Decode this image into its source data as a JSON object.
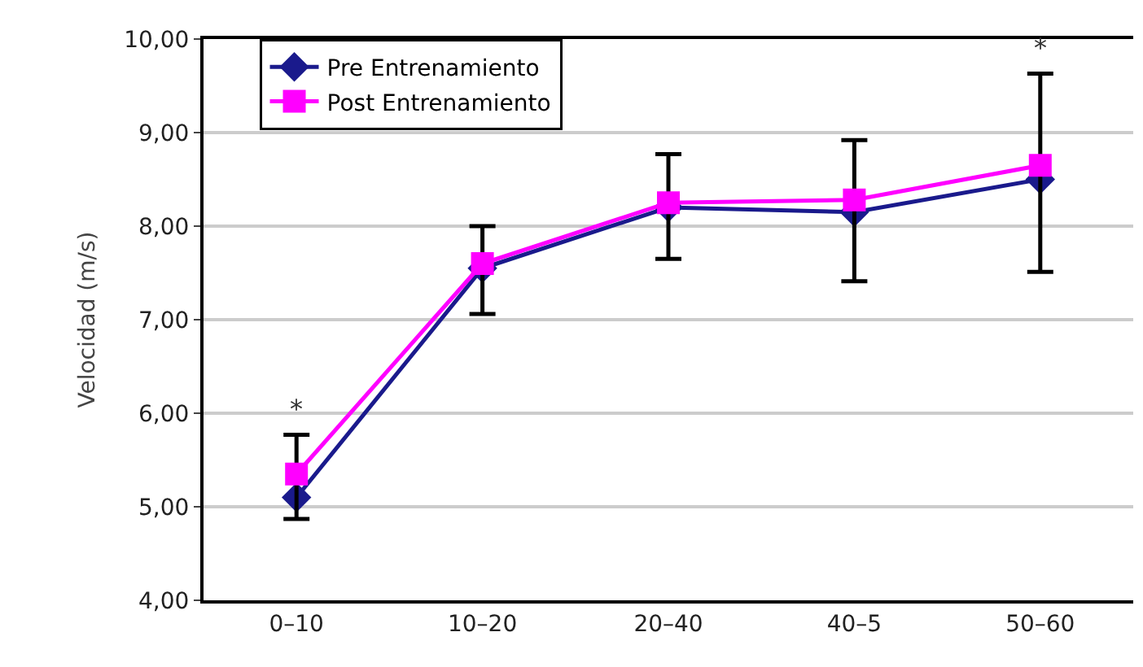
{
  "chart_data": {
    "type": "line",
    "ylabel": "Velocidad (m/s)",
    "categories": [
      "0–10",
      "10–20",
      "20–40",
      "40–5",
      "50–60"
    ],
    "series": [
      {
        "name": "Pre Entrenamiento",
        "color": "#1a1a8c",
        "marker": "diamond",
        "values": [
          5.1,
          7.55,
          8.2,
          8.15,
          8.5
        ]
      },
      {
        "name": "Post Entrenamiento",
        "color": "#ff00ff",
        "marker": "square",
        "values": [
          5.35,
          7.6,
          8.25,
          8.28,
          8.65
        ],
        "errors": [
          [
            4.87,
            5.77
          ],
          [
            7.06,
            8.0
          ],
          [
            7.65,
            8.77
          ],
          [
            7.41,
            8.92
          ],
          [
            7.51,
            9.63
          ]
        ]
      }
    ],
    "ylim": [
      4,
      10
    ],
    "yticks": [
      {
        "value": 4,
        "label": "4,00"
      },
      {
        "value": 5,
        "label": "5,00"
      },
      {
        "value": 6,
        "label": "6,00"
      },
      {
        "value": 7,
        "label": "7,00"
      },
      {
        "value": 8,
        "label": "8,00"
      },
      {
        "value": 9,
        "label": "9,00"
      },
      {
        "value": 10,
        "label": "10,00"
      }
    ],
    "grid": "y",
    "legend": "top left",
    "line_style": "solid",
    "annotations": [
      {
        "text": "*",
        "x": "0–10",
        "y": 5.77
      },
      {
        "text": "*",
        "x": "50–60",
        "y": 9.63
      }
    ]
  }
}
